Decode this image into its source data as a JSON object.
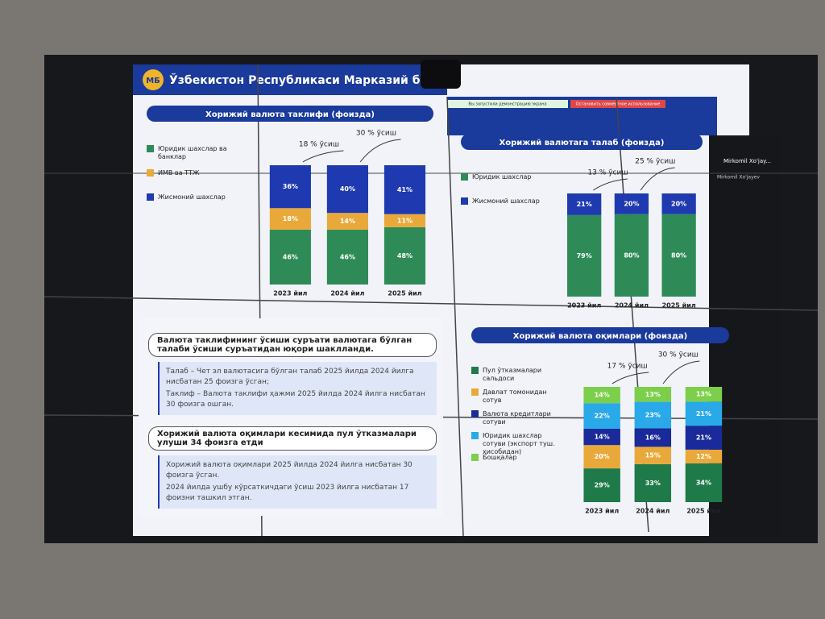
{
  "header": {
    "logo": "МБ",
    "title": "Ўзбекистон Республикаси Марказий банки"
  },
  "overlay": {
    "sharing": "Вы запустили демонстрацию экрана",
    "stop": "Остановить совместное использование",
    "user_short": "Mirkomil Xo'jay...",
    "user_full": "Mirkomil Xo'jayev"
  },
  "chart_data": [
    {
      "type": "stacked-bar",
      "title": "Хорижий валюта таклифи (фоизда)",
      "categories": [
        "2023 йил",
        "2024 йил",
        "2025 йил"
      ],
      "annotations": [
        "18 % ўсиш",
        "30 % ўсиш"
      ],
      "series": [
        {
          "name": "Юридик шахслар ва банклар",
          "color": "#2e8b57",
          "values": [
            46,
            46,
            48
          ],
          "value_labels": [
            "46%",
            "46%",
            "48%"
          ]
        },
        {
          "name": "ИМВ ва ТТЖ",
          "color": "#e9a93a",
          "values": [
            18,
            14,
            11
          ],
          "value_labels": [
            "18%",
            "14%",
            "11%"
          ]
        },
        {
          "name": "Жисмоний шахслар",
          "color": "#1f3ab0",
          "values": [
            36,
            40,
            41
          ],
          "value_labels": [
            "36%",
            "40%",
            "41%"
          ]
        }
      ]
    },
    {
      "type": "stacked-bar",
      "title": "Хорижий валютага талаб (фоизда)",
      "categories": [
        "2023 йил",
        "2024 йил",
        "2025 йил"
      ],
      "annotations": [
        "13 % ўсиш",
        "25 % ўсиш"
      ],
      "series": [
        {
          "name": "Юридик шахслар",
          "color": "#2e8b57",
          "values": [
            79,
            80,
            80
          ],
          "value_labels": [
            "79%",
            "80%",
            "80%"
          ]
        },
        {
          "name": "Жисмоний шахслар",
          "color": "#1f3ab0",
          "values": [
            21,
            20,
            20
          ],
          "value_labels": [
            "21%",
            "20%",
            "20%"
          ]
        }
      ]
    },
    {
      "type": "stacked-bar",
      "title": "Хорижий валюта оқимлари (фоизда)",
      "categories": [
        "2023 йил",
        "2024 йил",
        "2025 йил"
      ],
      "annotations": [
        "17 % ўсиш",
        "30 % ўсиш"
      ],
      "series": [
        {
          "name": "Пул ўтказмалари сальдоси",
          "color": "#1f7a4a",
          "values": [
            29,
            33,
            34
          ],
          "value_labels": [
            "29%",
            "33%",
            "34%"
          ]
        },
        {
          "name": "Давлат томонидан сотув",
          "color": "#e9a93a",
          "values": [
            20,
            15,
            12
          ],
          "value_labels": [
            "20%",
            "15%",
            "12%"
          ]
        },
        {
          "name": "Валюта кредитлари сотуви",
          "color": "#1a2a9a",
          "values": [
            14,
            16,
            21
          ],
          "value_labels": [
            "14%",
            "16%",
            "21%"
          ]
        },
        {
          "name": "Юридик шахслар сотуви (экспорт туш. ҳисобидан)",
          "color": "#29a9e8",
          "values": [
            22,
            23,
            21
          ],
          "value_labels": [
            "22%",
            "23%",
            "21%"
          ]
        },
        {
          "name": "Бошқалар",
          "color": "#7ccf4a",
          "values": [
            14,
            13,
            13
          ],
          "value_labels": [
            "14%",
            "13%",
            "13%"
          ]
        }
      ]
    }
  ],
  "panels": [
    {
      "title": "Валюта таклифининг ўсиши суръати валютага бўлган талаби ўсиши суръатидан юқори шаклланди.",
      "bullets": [
        "Талаб – Чет эл валютасига бўлган талаб 2025 йилда 2024 йилга нисбатан 25 фоизга ўсган;",
        "Таклиф – Валюта таклифи ҳажми 2025 йилда 2024 йилга нисбатан 30 фоизга ошган."
      ]
    },
    {
      "title": "Хорижий валюта оқимлари кесимида пул ўтказмалари улуши 34 фоизга етди",
      "bullets": [
        "Хорижий валюта оқимлари 2025 йилда 2024 йилга нисбатан 30 фоизга ўсган.",
        "2024 йилда ушбу кўрсаткичдаги ўсиш 2023 йилга нисбатан 17 фоизни ташкил этган."
      ]
    }
  ]
}
